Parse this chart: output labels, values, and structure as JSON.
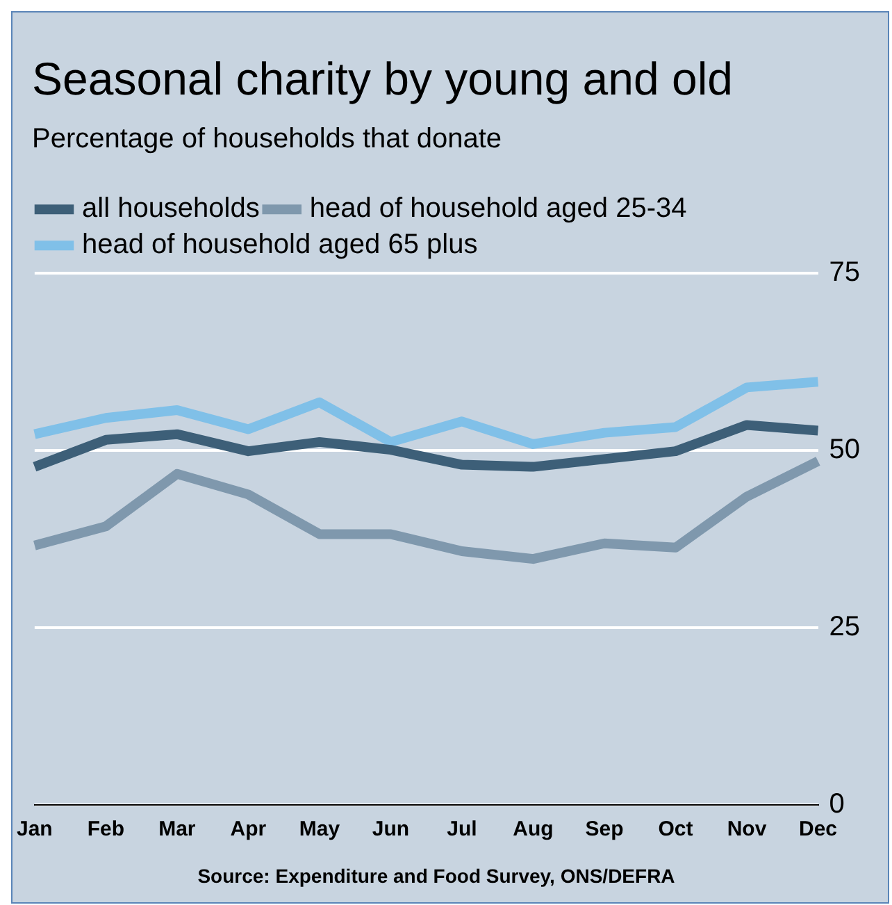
{
  "chart_data": {
    "type": "line",
    "title": "Seasonal charity by young and old",
    "subtitle": "Percentage of households that donate",
    "categories": [
      "Jan",
      "Feb",
      "Mar",
      "Apr",
      "May",
      "Jun",
      "Jul",
      "Aug",
      "Sep",
      "Oct",
      "Nov",
      "Dec"
    ],
    "series": [
      {
        "name": "all households",
        "color": "#3d5f78",
        "values": [
          47.7,
          51.5,
          52.3,
          49.9,
          51.2,
          50.1,
          48.0,
          47.7,
          48.8,
          49.9,
          53.6,
          52.8
        ]
      },
      {
        "name": "head of household aged 25-34",
        "color": "#7f98ad",
        "values": [
          36.6,
          39.3,
          46.7,
          43.8,
          38.2,
          38.2,
          35.8,
          34.7,
          36.9,
          36.3,
          43.5,
          48.5
        ]
      },
      {
        "name": "head of household aged 65 plus",
        "color": "#80c0e8",
        "values": [
          52.3,
          54.6,
          55.7,
          53.0,
          56.8,
          51.2,
          54.1,
          50.9,
          52.5,
          53.3,
          58.9,
          59.7
        ]
      }
    ],
    "ylim": [
      0,
      75
    ],
    "yticks": [
      0,
      25,
      50,
      75
    ],
    "grid": "y",
    "legend": "top left",
    "marker": "none",
    "line_style": "solid",
    "annotations": [
      "Source: Expenditure and Food Survey, ONS/DEFRA"
    ]
  }
}
